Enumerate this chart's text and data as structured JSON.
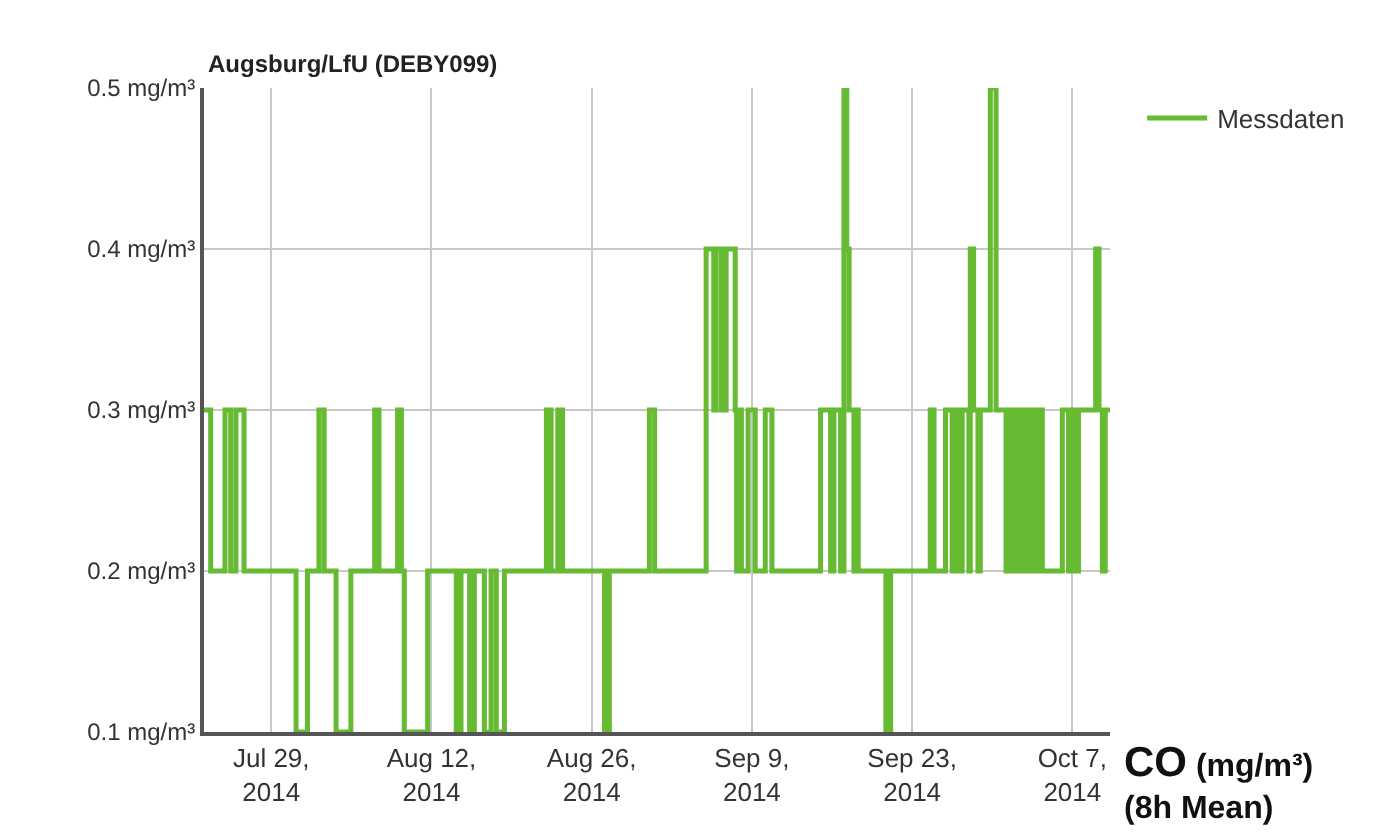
{
  "chart_data": {
    "type": "step",
    "title": "Augsburg/LfU (DEBY099)",
    "xlabel": "CO (mg/m³)\n(8h Mean)",
    "x": [
      "2014-07-23T03:00",
      "2014-07-23T17:00",
      "2014-07-24T23:00",
      "2014-07-25T11:00",
      "2014-07-25T22:00",
      "2014-07-26T15:00",
      "2014-07-31T04:00",
      "2014-08-01T04:00",
      "2014-08-02T04:00",
      "2014-08-02T15:00",
      "2014-08-03T16:00",
      "2014-08-04T23:00",
      "2014-08-07T01:00",
      "2014-08-07T10:00",
      "2014-08-09T01:00",
      "2014-08-09T09:00",
      "2014-08-09T15:00",
      "2014-08-11T16:00",
      "2014-08-14T04:00",
      "2014-08-14T14:00",
      "2014-08-15T08:00",
      "2014-08-15T18:00",
      "2014-08-16T15:00",
      "2014-08-17T05:00",
      "2014-08-17T16:00",
      "2014-08-18T09:00",
      "2014-08-22T01:00",
      "2014-08-22T11:00",
      "2014-08-23T01:00",
      "2014-08-23T11:00",
      "2014-08-27T03:00",
      "2014-08-27T13:00",
      "2014-08-31T01:00",
      "2014-08-31T12:00",
      "2014-09-05T00:00",
      "2014-09-05T16:00",
      "2014-09-05T21:00",
      "2014-09-06T08:00",
      "2014-09-06T18:00",
      "2014-09-07T13:00",
      "2014-09-07T16:00",
      "2014-09-07T19:00",
      "2014-09-08T02:00",
      "2014-09-08T16:00",
      "2014-09-09T07:00",
      "2014-09-10T04:00",
      "2014-09-10T18:00",
      "2014-09-15T00:00",
      "2014-09-15T21:00",
      "2014-09-16T04:00",
      "2014-09-16T18:00",
      "2014-09-17T01:00",
      "2014-09-17T07:00",
      "2014-09-17T12:00",
      "2014-09-17T22:00",
      "2014-09-18T02:00",
      "2014-09-18T07:00",
      "2014-09-20T17:00",
      "2014-09-21T03:00",
      "2014-09-24T14:00",
      "2014-09-24T22:00",
      "2014-09-25T22:00",
      "2014-09-26T12:00",
      "2014-09-26T19:00",
      "2014-09-27T02:00",
      "2014-09-27T09:00",
      "2014-09-27T23:00",
      "2014-09-28T02:00",
      "2014-09-28T09:00",
      "2014-09-28T18:00",
      "2014-09-28T23:00",
      "2014-09-29T20:00",
      "2014-09-30T08:00",
      "2014-10-01T05:00",
      "2014-10-01T14:00",
      "2014-10-01T22:00",
      "2014-10-02T06:00",
      "2014-10-02T15:00",
      "2014-10-02T21:00",
      "2014-10-03T04:00",
      "2014-10-03T10:00",
      "2014-10-03T20:00",
      "2014-10-04T03:00",
      "2014-10-04T09:00",
      "2014-10-06T03:00",
      "2014-10-06T16:00",
      "2014-10-06T22:00",
      "2014-10-07T04:00",
      "2014-10-07T13:00",
      "2014-10-09T01:00",
      "2014-10-09T08:00",
      "2014-10-09T15:00",
      "2014-10-09T21:00",
      "2014-10-10T07:00"
    ],
    "series": [
      {
        "name": "Messdaten",
        "color": "#66bb33",
        "values": [
          0.3,
          0.2,
          0.3,
          0.2,
          0.3,
          0.2,
          0.1,
          0.2,
          0.3,
          0.2,
          0.1,
          0.2,
          0.3,
          0.2,
          0.3,
          0.2,
          0.1,
          0.2,
          0.1,
          0.2,
          0.1,
          0.2,
          0.1,
          0.2,
          0.1,
          0.2,
          0.3,
          0.2,
          0.3,
          0.2,
          0.1,
          0.2,
          0.3,
          0.2,
          0.4,
          0.3,
          0.4,
          0.3,
          0.4,
          0.3,
          0.2,
          0.3,
          0.2,
          0.3,
          0.2,
          0.3,
          0.2,
          0.3,
          0.2,
          0.3,
          0.2,
          0.5,
          0.4,
          0.3,
          0.2,
          0.3,
          0.2,
          0.1,
          0.2,
          0.3,
          0.2,
          0.3,
          0.2,
          0.3,
          0.2,
          0.3,
          0.2,
          0.4,
          0.3,
          0.2,
          0.3,
          0.5,
          0.3,
          0.2,
          0.3,
          0.2,
          0.3,
          0.2,
          0.3,
          0.2,
          0.3,
          0.2,
          0.3,
          0.2,
          0.3,
          0.2,
          0.3,
          0.2,
          0.3,
          0.4,
          0.3,
          0.2,
          0.3,
          0.3
        ]
      }
    ],
    "xlim": [
      "2014-07-23T03:00",
      "2014-10-10T07:00"
    ],
    "xticks": [
      {
        "value": "2014-07-29",
        "label": "Jul 29,\n2014"
      },
      {
        "value": "2014-08-12",
        "label": "Aug 12,\n2014"
      },
      {
        "value": "2014-08-26",
        "label": "Aug 26,\n2014"
      },
      {
        "value": "2014-09-09",
        "label": "Sep 9,\n2014"
      },
      {
        "value": "2014-09-23",
        "label": "Sep 23,\n2014"
      },
      {
        "value": "2014-10-07",
        "label": "Oct 7,\n2014"
      }
    ],
    "ylim": [
      0.1,
      0.5
    ],
    "yticks": [
      {
        "value": 0.1,
        "label": "0.1 mg/m³"
      },
      {
        "value": 0.2,
        "label": "0.2 mg/m³"
      },
      {
        "value": 0.3,
        "label": "0.3 mg/m³"
      },
      {
        "value": 0.4,
        "label": "0.4 mg/m³"
      },
      {
        "value": 0.5,
        "label": "0.5 mg/m³"
      }
    ],
    "grid": true,
    "legend": "top right",
    "line_style": "solid"
  }
}
